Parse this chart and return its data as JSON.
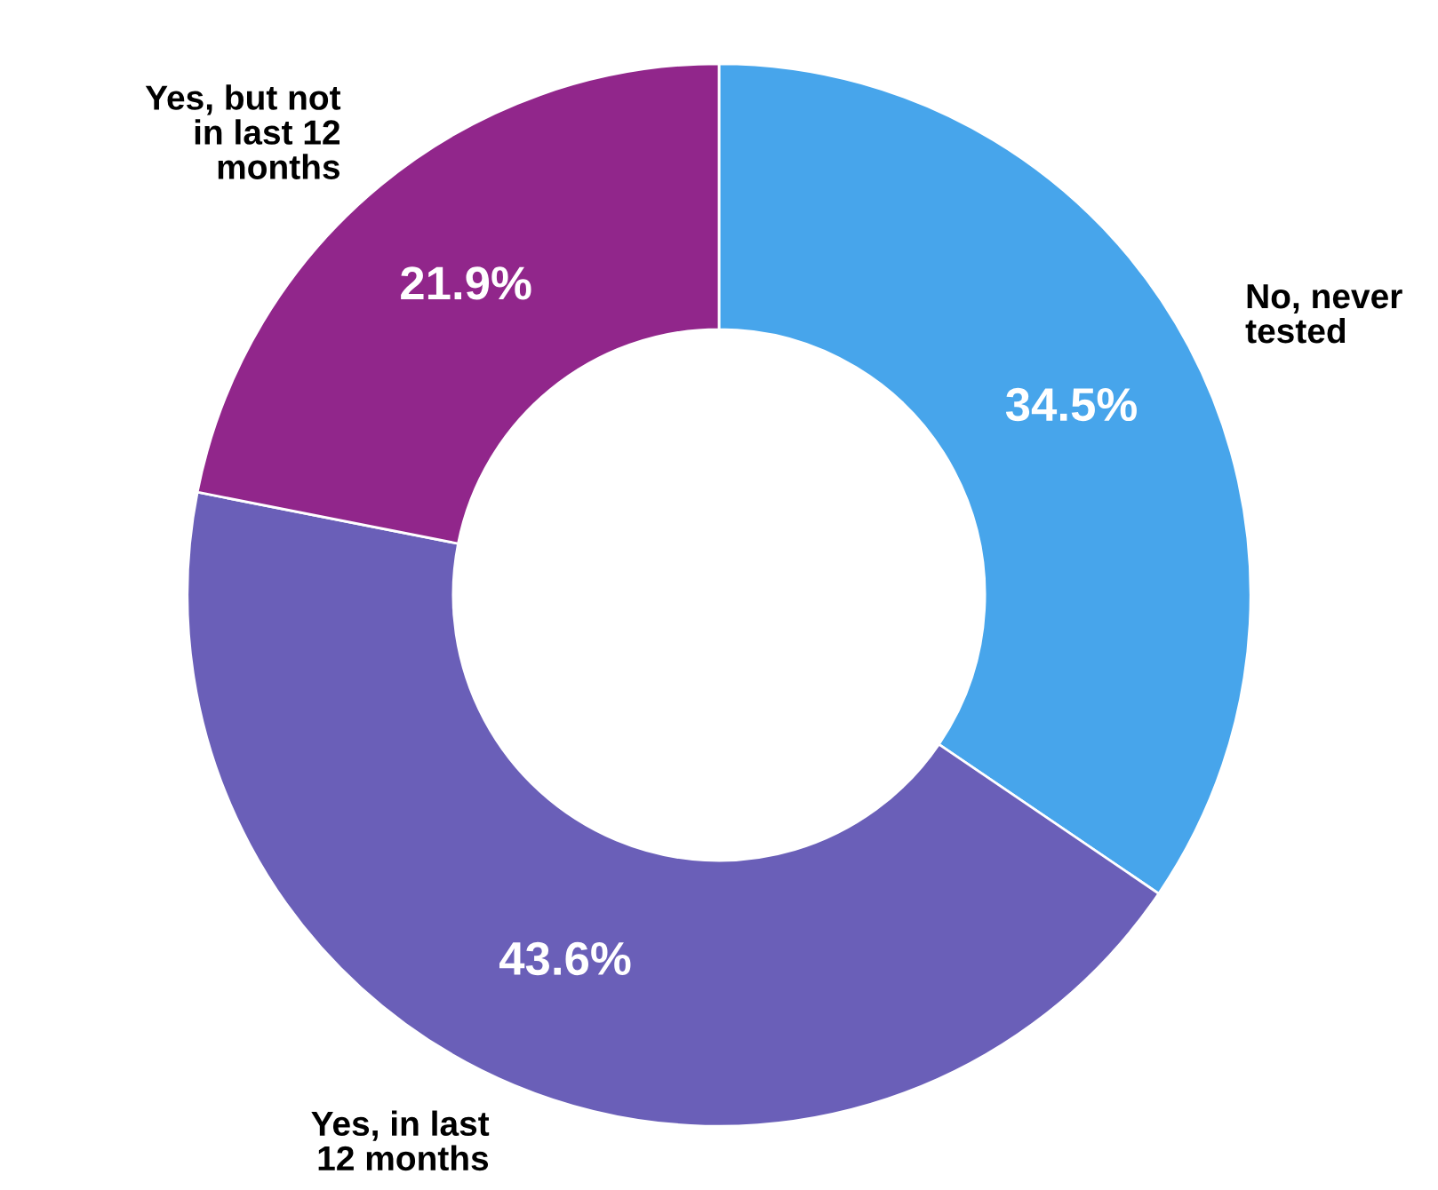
{
  "chart_data": {
    "type": "donut",
    "categories": [
      "No, never\ntested",
      "Yes, in last\n12 months",
      "Yes, but not\nin last 12\nmonths"
    ],
    "values": [
      34.5,
      43.6,
      21.9
    ],
    "colors": [
      "#47a5eb",
      "#6a5fb8",
      "#91268b"
    ],
    "value_labels": [
      "34.5%",
      "43.6%",
      "21.9%"
    ]
  }
}
